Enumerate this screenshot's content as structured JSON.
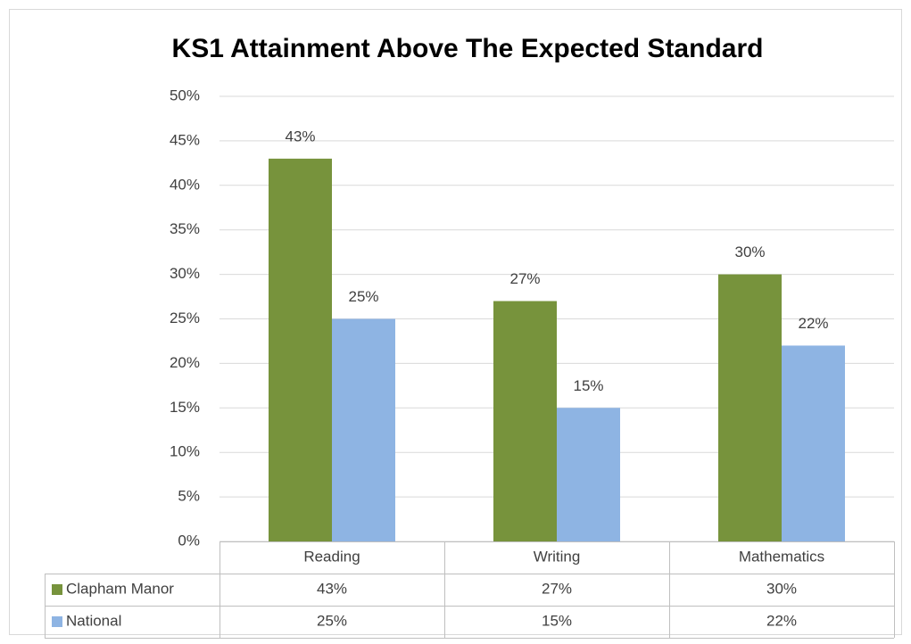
{
  "chart_data": {
    "type": "bar",
    "title": "KS1 Attainment Above The Expected Standard",
    "categories": [
      "Reading",
      "Writing",
      "Mathematics"
    ],
    "series": [
      {
        "name": "Clapham Manor",
        "color": "#77933c",
        "values": [
          43,
          27,
          30
        ],
        "value_labels": [
          "43%",
          "27%",
          "30%"
        ]
      },
      {
        "name": "National",
        "color": "#8eb4e3",
        "values": [
          25,
          15,
          22
        ],
        "value_labels": [
          "25%",
          "15%",
          "22%"
        ]
      }
    ],
    "ylim": [
      0,
      50
    ],
    "yticks": [
      {
        "value": 0,
        "label": "0%"
      },
      {
        "value": 5,
        "label": "5%"
      },
      {
        "value": 10,
        "label": "10%"
      },
      {
        "value": 15,
        "label": "15%"
      },
      {
        "value": 20,
        "label": "20%"
      },
      {
        "value": 25,
        "label": "25%"
      },
      {
        "value": 30,
        "label": "30%"
      },
      {
        "value": 35,
        "label": "35%"
      },
      {
        "value": 40,
        "label": "40%"
      },
      {
        "value": 45,
        "label": "45%"
      },
      {
        "value": 50,
        "label": "50%"
      }
    ],
    "grid": true
  }
}
